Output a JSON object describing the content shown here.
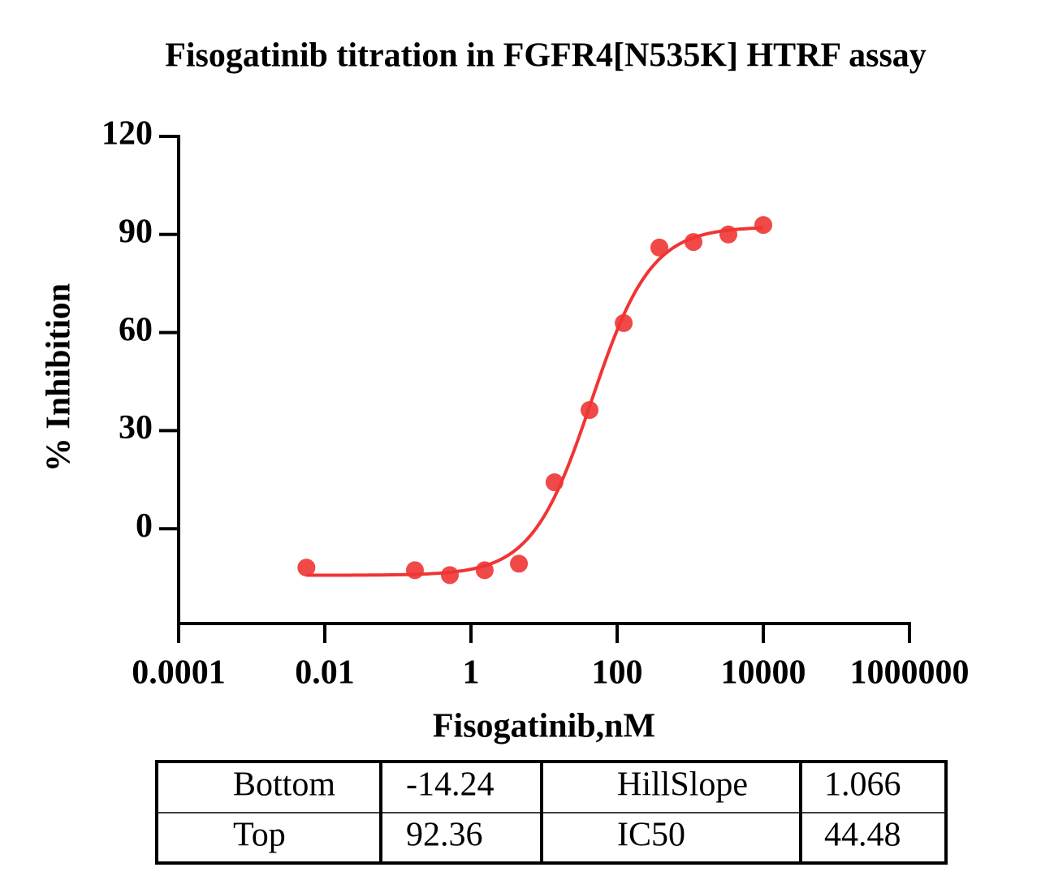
{
  "chart_data": {
    "type": "scatter",
    "title": "Fisogatinib titration in FGFR4[N535K] HTRF assay",
    "xlabel": "Fisogatinib,nM",
    "ylabel": "% Inhibition",
    "x": [
      0.0056,
      0.171,
      0.514,
      1.54,
      4.53,
      13.9,
      41.9,
      123,
      378,
      1108,
      3329,
      10000
    ],
    "values": [
      -11.9,
      -12.7,
      -14.2,
      -12.7,
      -10.7,
      14.2,
      36.3,
      62.9,
      86.0,
      87.7,
      90.0,
      92.9
    ],
    "color": "#f03434",
    "xscale": "log",
    "xlim": [
      0.0001,
      1000000
    ],
    "xticks": [
      0.0001,
      0.01,
      1,
      100,
      10000,
      1000000
    ],
    "ylim": [
      -29,
      120
    ],
    "yticks": [
      0,
      30,
      60,
      90,
      120
    ]
  },
  "table": {
    "rows": [
      [
        "Bottom",
        -14.24,
        "HillSlope",
        1.066
      ],
      [
        "Top",
        92.36,
        "IC50",
        44.48
      ]
    ]
  }
}
